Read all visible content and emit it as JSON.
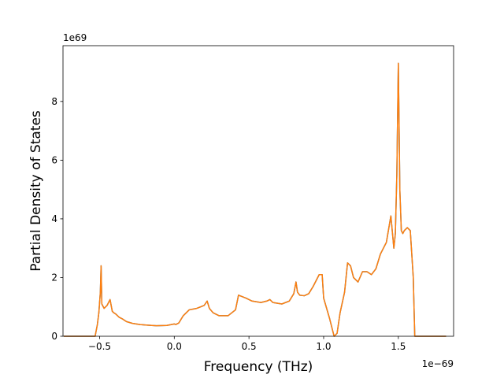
{
  "chart_data": {
    "type": "line",
    "xlabel": "Frequency (THz)",
    "ylabel": "Partial Density of States",
    "x_offset_label": "1e−69",
    "y_offset_label": "1e69",
    "xlim": [
      -0.745,
      1.87
    ],
    "ylim": [
      0,
      9.9
    ],
    "x_ticks": [
      -0.5,
      0.0,
      0.5,
      1.0,
      1.5
    ],
    "x_tick_labels": [
      "−0.5",
      "0.0",
      "0.5",
      "1.0",
      "1.5"
    ],
    "y_ticks": [
      0,
      2,
      4,
      6,
      8
    ],
    "y_tick_labels": [
      "0",
      "2",
      "4",
      "6",
      "8"
    ],
    "grid": false,
    "series": [
      {
        "color": "#1f77b4",
        "x": [
          -0.74,
          -0.53,
          -0.515,
          -0.505,
          -0.495,
          -0.49,
          -0.485,
          -0.47,
          -0.45,
          -0.43,
          -0.415,
          -0.405,
          -0.39,
          -0.37,
          -0.35,
          -0.32,
          -0.28,
          -0.23,
          -0.18,
          -0.12,
          -0.05,
          0.0,
          0.01,
          0.03,
          0.06,
          0.1,
          0.15,
          0.2,
          0.22,
          0.235,
          0.26,
          0.3,
          0.36,
          0.41,
          0.43,
          0.44,
          0.48,
          0.52,
          0.58,
          0.62,
          0.64,
          0.66,
          0.72,
          0.77,
          0.8,
          0.815,
          0.825,
          0.84,
          0.87,
          0.9,
          0.93,
          0.97,
          0.99,
          1.0,
          1.04,
          1.07,
          1.09,
          1.11,
          1.14,
          1.16,
          1.18,
          1.2,
          1.23,
          1.26,
          1.29,
          1.32,
          1.35,
          1.38,
          1.4,
          1.42,
          1.45,
          1.47,
          1.48,
          1.49,
          1.5,
          1.51,
          1.52,
          1.53,
          1.54,
          1.56,
          1.58,
          1.6,
          1.61,
          1.63,
          1.7,
          1.82
        ],
        "y": [
          0,
          0,
          0.4,
          0.8,
          1.5,
          2.4,
          1.1,
          0.95,
          1.05,
          1.25,
          0.85,
          0.8,
          0.75,
          0.65,
          0.6,
          0.5,
          0.44,
          0.4,
          0.38,
          0.36,
          0.37,
          0.42,
          0.4,
          0.45,
          0.7,
          0.9,
          0.95,
          1.05,
          1.2,
          0.95,
          0.8,
          0.7,
          0.7,
          0.9,
          1.4,
          1.38,
          1.3,
          1.2,
          1.15,
          1.2,
          1.25,
          1.15,
          1.1,
          1.2,
          1.45,
          1.85,
          1.5,
          1.4,
          1.38,
          1.45,
          1.7,
          2.1,
          2.1,
          1.3,
          0.6,
          0.0,
          0.1,
          0.8,
          1.5,
          2.5,
          2.4,
          2.0,
          1.85,
          2.2,
          2.2,
          2.1,
          2.3,
          2.8,
          3.0,
          3.2,
          4.1,
          3.0,
          3.5,
          5.5,
          9.3,
          5.0,
          3.6,
          3.5,
          3.6,
          3.7,
          3.6,
          2.0,
          0.0,
          0,
          0,
          0
        ]
      },
      {
        "color": "#ff7f0e",
        "x": [
          -0.74,
          -0.53,
          -0.515,
          -0.505,
          -0.495,
          -0.49,
          -0.485,
          -0.47,
          -0.45,
          -0.43,
          -0.415,
          -0.405,
          -0.39,
          -0.37,
          -0.35,
          -0.32,
          -0.28,
          -0.23,
          -0.18,
          -0.12,
          -0.05,
          0.0,
          0.01,
          0.03,
          0.06,
          0.1,
          0.15,
          0.2,
          0.22,
          0.235,
          0.26,
          0.3,
          0.36,
          0.41,
          0.43,
          0.44,
          0.48,
          0.52,
          0.58,
          0.62,
          0.64,
          0.66,
          0.72,
          0.77,
          0.8,
          0.815,
          0.825,
          0.84,
          0.87,
          0.9,
          0.93,
          0.97,
          0.99,
          1.0,
          1.04,
          1.07,
          1.09,
          1.11,
          1.14,
          1.16,
          1.18,
          1.2,
          1.23,
          1.26,
          1.29,
          1.32,
          1.35,
          1.38,
          1.4,
          1.42,
          1.45,
          1.47,
          1.48,
          1.49,
          1.5,
          1.51,
          1.52,
          1.53,
          1.54,
          1.56,
          1.58,
          1.6,
          1.61,
          1.63,
          1.7,
          1.82
        ],
        "y": [
          0,
          0,
          0.4,
          0.8,
          1.5,
          2.4,
          1.1,
          0.95,
          1.05,
          1.25,
          0.85,
          0.8,
          0.75,
          0.65,
          0.6,
          0.5,
          0.44,
          0.4,
          0.38,
          0.36,
          0.37,
          0.42,
          0.4,
          0.45,
          0.7,
          0.9,
          0.95,
          1.05,
          1.2,
          0.95,
          0.8,
          0.7,
          0.7,
          0.9,
          1.4,
          1.38,
          1.3,
          1.2,
          1.15,
          1.2,
          1.25,
          1.15,
          1.1,
          1.2,
          1.45,
          1.85,
          1.5,
          1.4,
          1.38,
          1.45,
          1.7,
          2.1,
          2.1,
          1.3,
          0.6,
          0.0,
          0.1,
          0.8,
          1.5,
          2.5,
          2.4,
          2.0,
          1.85,
          2.2,
          2.2,
          2.1,
          2.3,
          2.8,
          3.0,
          3.2,
          4.1,
          3.0,
          3.5,
          5.5,
          9.3,
          5.0,
          3.6,
          3.5,
          3.6,
          3.7,
          3.6,
          2.0,
          0.0,
          0,
          0,
          0
        ]
      }
    ]
  }
}
